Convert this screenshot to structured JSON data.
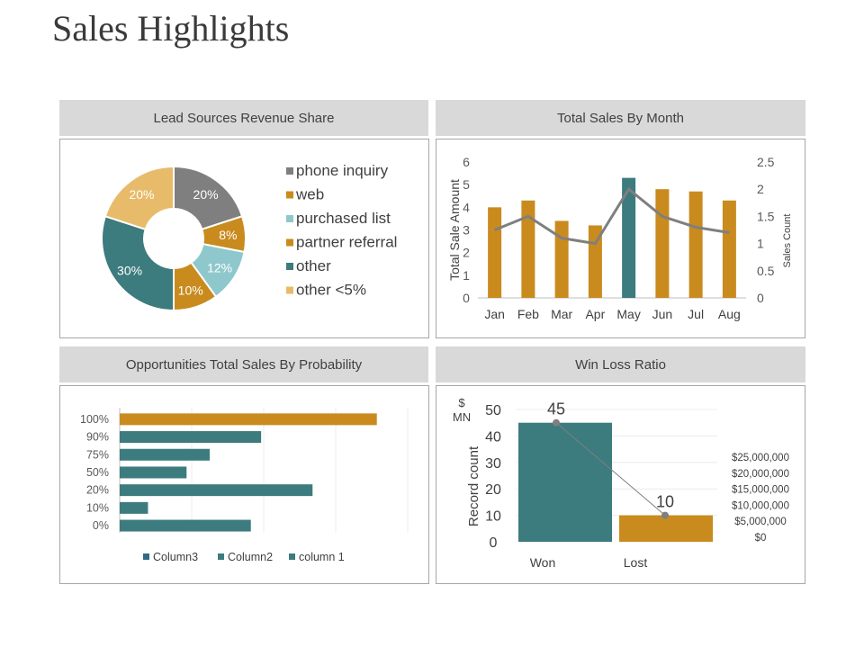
{
  "page": {
    "title": "Sales Highlights"
  },
  "colors": {
    "gray": "#7f7f7f",
    "gold": "#c98b1e",
    "lightblue": "#8ec8cc",
    "teal": "#3c7b7e",
    "tan": "#e8bb6a",
    "line": "#7f7f7f"
  },
  "chart_data": [
    {
      "type": "pie",
      "title": "Lead Sources Revenue Share",
      "categories": [
        "phone inquiry",
        "web",
        "purchased list",
        "partner referral",
        "other",
        "other <5%"
      ],
      "values": [
        20,
        8,
        12,
        10,
        30,
        20
      ],
      "labels": [
        "20%",
        "8%",
        "12%",
        "10%",
        "30%",
        "20%"
      ],
      "legend": "right",
      "donut": true
    },
    {
      "type": "bar",
      "title": "Total Sales By Month",
      "categories": [
        "Jan",
        "Feb",
        "Mar",
        "Apr",
        "May",
        "Jun",
        "Jul",
        "Aug"
      ],
      "series": [
        {
          "name": "Total Sale Amount",
          "type": "bar",
          "axis": "left",
          "values": [
            4.0,
            4.3,
            3.4,
            3.2,
            5.3,
            4.8,
            4.7,
            4.3
          ],
          "highlight_index": 4
        },
        {
          "name": "Sales Count",
          "type": "line",
          "axis": "right",
          "values": [
            1.25,
            1.5,
            1.1,
            1.0,
            2.0,
            1.5,
            1.3,
            1.2
          ]
        }
      ],
      "ylabel": "Total Sale Amount",
      "ylim": [
        0,
        6
      ],
      "yticks": [
        "0",
        "1",
        "2",
        "3",
        "4",
        "5",
        "6"
      ],
      "y2label": "Sales Count",
      "y2lim": [
        0,
        2.5
      ],
      "y2ticks": [
        "0",
        "0.5",
        "1",
        "1.5",
        "2",
        "2.5"
      ]
    },
    {
      "type": "bar",
      "orientation": "horizontal",
      "title": "Opportunities Total Sales By Probability",
      "categories": [
        "100%",
        "90%",
        "75%",
        "50%",
        "20%",
        "10%",
        "0%"
      ],
      "values": [
        100,
        55,
        35,
        26,
        75,
        11,
        51
      ],
      "xlim": [
        0,
        112
      ],
      "legend_entries": [
        "Column3",
        "Column2",
        "column 1"
      ],
      "legend": "bottom"
    },
    {
      "type": "bar",
      "title": "Win Loss Ratio",
      "categories": [
        "Won",
        "Lost"
      ],
      "values": [
        45,
        10
      ],
      "data_labels": [
        "45",
        "10"
      ],
      "ylabel": "Record count",
      "ylim": [
        0,
        50
      ],
      "yticks": [
        "0",
        "10",
        "20",
        "30",
        "40",
        "50"
      ],
      "unit_label": "$ MN",
      "y2ticks": [
        "$0",
        "$5,000,000",
        "$10,000,000",
        "$15,000,000",
        "$20,000,000",
        "$25,000,000"
      ]
    }
  ]
}
